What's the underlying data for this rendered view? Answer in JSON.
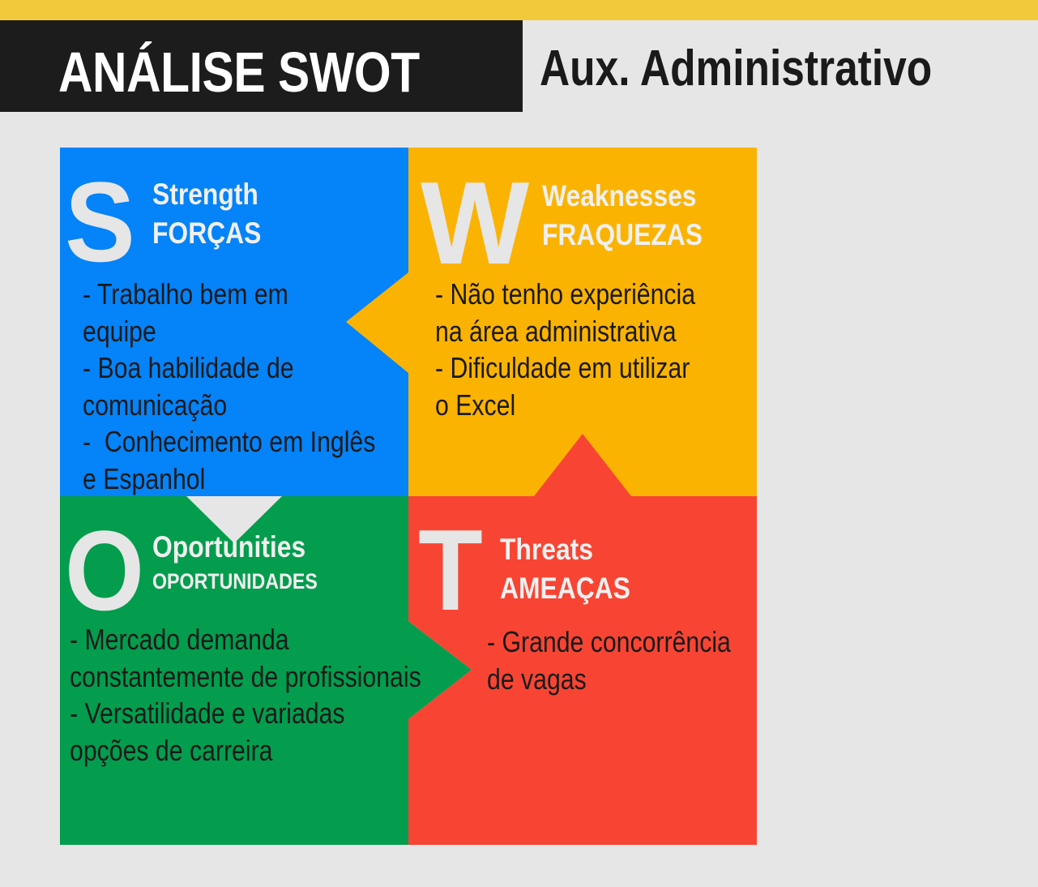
{
  "header": {
    "title": "ANÁLISE SWOT",
    "subtitle": "Aux. Administrativo"
  },
  "colors": {
    "stripe": "#f2c93b",
    "title_bg": "#1c1c1c",
    "strength": "#0583f8",
    "weakness": "#fbb302",
    "opportunity": "#039d4d",
    "threat": "#f84533",
    "letter": "#e6e6e6"
  },
  "quadrants": {
    "strength": {
      "letter": "S",
      "title": "Strength",
      "subtitle": "FORÇAS",
      "items": [
        "- Trabalho bem em",
        "equipe",
        "- Boa habilidade de",
        "comunicação",
        "-  Conhecimento em Inglês",
        "e Espanhol"
      ]
    },
    "weakness": {
      "letter": "W",
      "title": "Weaknesses",
      "subtitle": "FRAQUEZAS",
      "items": [
        "- Não tenho experiência",
        "na área administrativa",
        "- Dificuldade em utilizar",
        "o Excel"
      ]
    },
    "opportunity": {
      "letter": "O",
      "title": "Oportunities",
      "subtitle": "OPORTUNIDADES",
      "items": [
        "- Mercado demanda",
        "constantemente de profissionais",
        "- Versatilidade e variadas",
        "opções de carreira"
      ]
    },
    "threat": {
      "letter": "T",
      "title": "Threats",
      "subtitle": "AMEAÇAS",
      "items": [
        "- Grande concorrência",
        "de vagas"
      ]
    }
  }
}
